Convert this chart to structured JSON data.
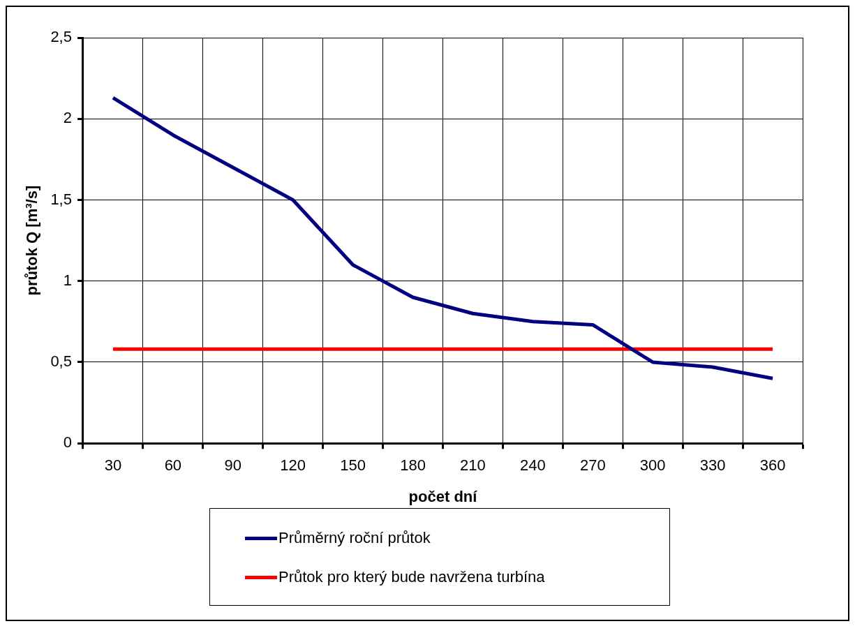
{
  "chart_data": {
    "type": "line",
    "xlabel": "počet dní",
    "ylabel": "průtok Q [m³/s]",
    "categories": [
      "30",
      "60",
      "90",
      "120",
      "150",
      "180",
      "210",
      "240",
      "270",
      "300",
      "330",
      "360"
    ],
    "series": [
      {
        "name": "Průměrný roční průtok",
        "color": "#000080",
        "values": [
          2.13,
          1.9,
          1.7,
          1.5,
          1.1,
          0.9,
          0.8,
          0.75,
          0.73,
          0.5,
          0.47,
          0.4
        ]
      },
      {
        "name": "Průtok pro který bude navržena turbína",
        "color": "#ff0000",
        "values": [
          0.58,
          0.58,
          0.58,
          0.58,
          0.58,
          0.58,
          0.58,
          0.58,
          0.58,
          0.58,
          0.58,
          0.58
        ]
      }
    ],
    "ylim": [
      0,
      2.5
    ],
    "yticks": [
      0,
      {
        "value": 0.5,
        "label": "0,5"
      },
      1,
      {
        "value": 1.5,
        "label": "1,5"
      },
      2,
      {
        "value": 2.5,
        "label": "2,5"
      }
    ],
    "grid": true,
    "legend": "bottom",
    "marker": "none",
    "line_style": "solid"
  }
}
